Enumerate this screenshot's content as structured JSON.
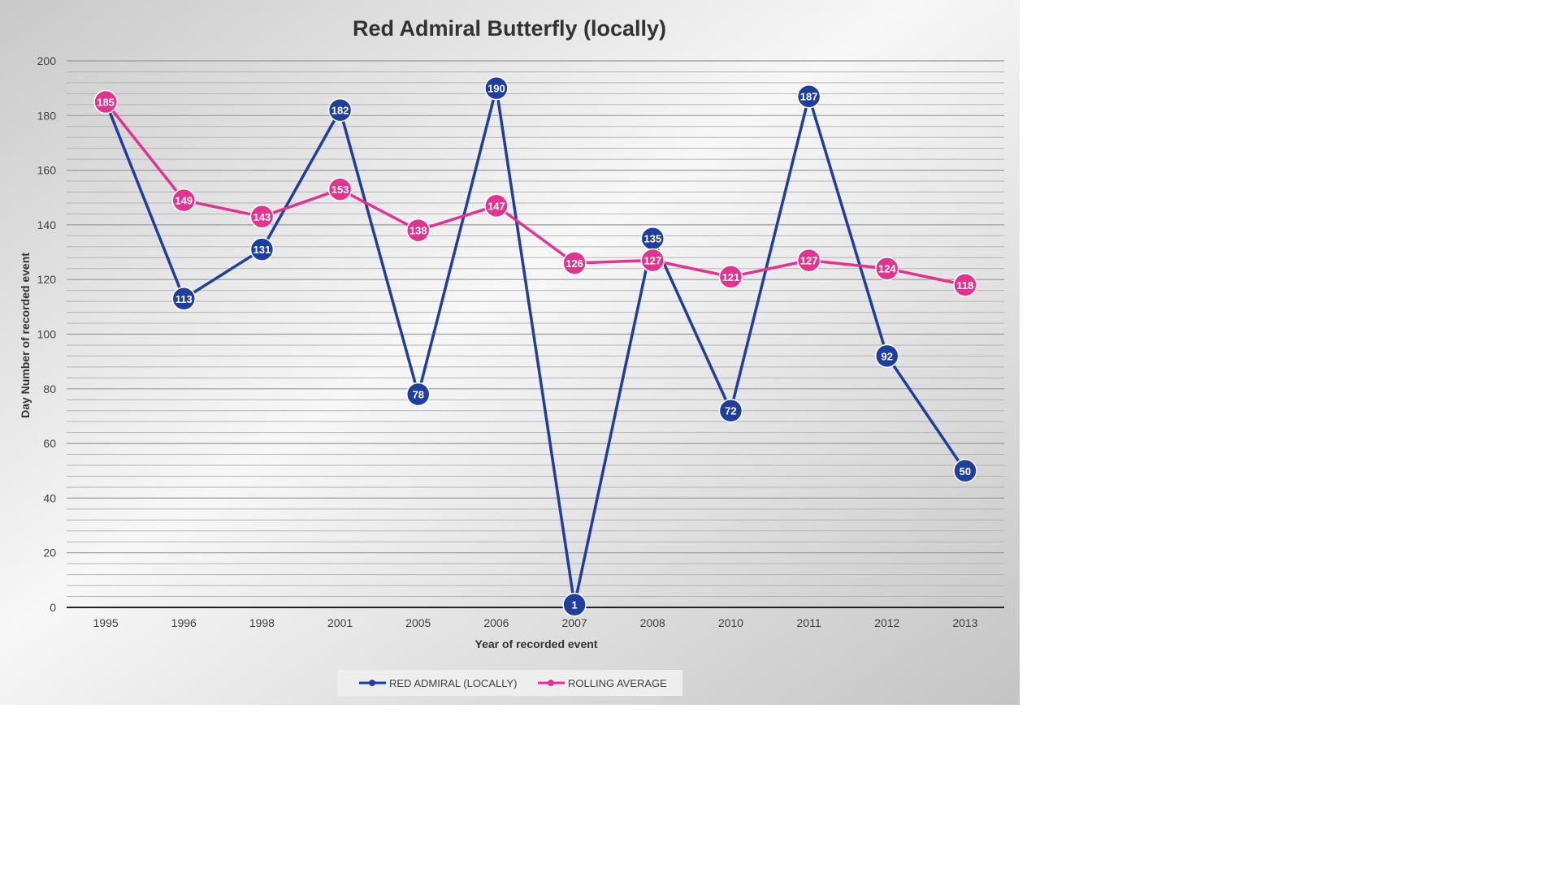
{
  "chart_data": {
    "type": "line",
    "title": "Red Admiral Butterfly (locally)",
    "xlabel": "Year of recorded  event",
    "ylabel": "Day Number of recorded  event",
    "categories": [
      "1995",
      "1996",
      "1998",
      "2001",
      "2005",
      "2006",
      "2007",
      "2008",
      "2010",
      "2011",
      "2012",
      "2013"
    ],
    "ylim": [
      0,
      200
    ],
    "yticks": [
      "0",
      "20",
      "40",
      "60",
      "80",
      "100",
      "120",
      "140",
      "160",
      "180",
      "200"
    ],
    "grid": true,
    "legend_position": "bottom",
    "series": [
      {
        "name": "RED ADMIRAL (LOCALLY)",
        "color": "#1f3f9e",
        "values": [
          185,
          113,
          131,
          182,
          78,
          190,
          1,
          135,
          72,
          187,
          92,
          50
        ],
        "labels": [
          "",
          "113",
          "131",
          "182",
          "78",
          "190",
          "1",
          "135",
          "72",
          "187",
          "92",
          "50"
        ]
      },
      {
        "name": "ROLLING AVERAGE",
        "color": "#e0348f",
        "values": [
          185,
          149,
          143,
          153,
          138,
          147,
          126,
          127,
          121,
          127,
          124,
          118
        ],
        "labels": [
          "185",
          "149",
          "143",
          "153",
          "138",
          "147",
          "126",
          "127",
          "121",
          "127",
          "124",
          "118"
        ]
      }
    ]
  }
}
